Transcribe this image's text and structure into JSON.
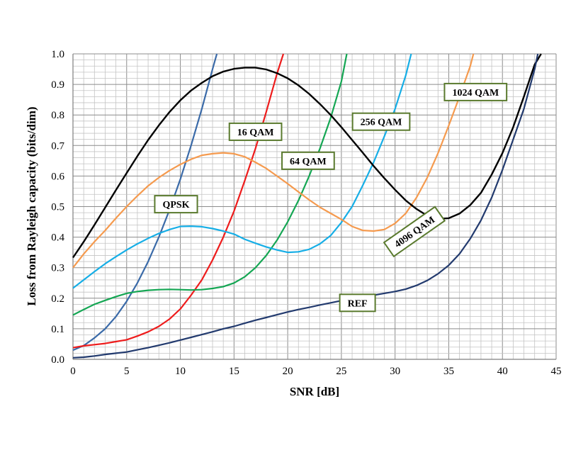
{
  "chart_data": {
    "type": "line",
    "xlabel": "SNR [dB]",
    "ylabel": "Loss from Rayleigh capacity (bits/dim)",
    "xlim": [
      0,
      45
    ],
    "ylim": [
      0,
      1.0
    ],
    "x_ticks": [
      "0",
      "5",
      "10",
      "15",
      "20",
      "25",
      "30",
      "35",
      "40",
      "45"
    ],
    "y_ticks": [
      "0.0",
      "0.1",
      "0.2",
      "0.3",
      "0.4",
      "0.5",
      "0.6",
      "0.7",
      "0.8",
      "0.9",
      "1.0"
    ],
    "grid": true,
    "series": [
      {
        "name": "QPSK",
        "color": "#3a6aa8",
        "x": [
          0,
          1,
          2,
          3,
          4,
          5,
          6,
          7,
          8,
          9,
          10,
          11,
          12,
          13,
          13.4
        ],
        "y": [
          0.03,
          0.045,
          0.07,
          0.1,
          0.14,
          0.19,
          0.25,
          0.32,
          0.4,
          0.49,
          0.59,
          0.7,
          0.82,
          0.95,
          1.0
        ]
      },
      {
        "name": "16 QAM",
        "color": "#ee1c1c",
        "x": [
          0,
          1,
          2,
          3,
          4,
          5,
          6,
          7,
          8,
          9,
          10,
          11,
          12,
          13,
          14,
          15,
          16,
          17,
          18,
          19,
          19.6
        ],
        "y": [
          0.038,
          0.044,
          0.048,
          0.052,
          0.058,
          0.064,
          0.076,
          0.09,
          0.108,
          0.132,
          0.165,
          0.21,
          0.26,
          0.325,
          0.4,
          0.485,
          0.585,
          0.69,
          0.81,
          0.935,
          1.0
        ]
      },
      {
        "name": "64 QAM",
        "color": "#14a653",
        "x": [
          0,
          1,
          2,
          3,
          4,
          5,
          6,
          7,
          8,
          9,
          10,
          11,
          12,
          13,
          14,
          15,
          16,
          17,
          18,
          19,
          20,
          21,
          22,
          23,
          24,
          25,
          25.5
        ],
        "y": [
          0.145,
          0.163,
          0.18,
          0.193,
          0.205,
          0.216,
          0.222,
          0.226,
          0.228,
          0.229,
          0.228,
          0.227,
          0.228,
          0.232,
          0.238,
          0.25,
          0.27,
          0.3,
          0.34,
          0.39,
          0.45,
          0.52,
          0.6,
          0.69,
          0.79,
          0.91,
          1.0
        ]
      },
      {
        "name": "256 QAM",
        "color": "#16aee6",
        "x": [
          0,
          1,
          2,
          3,
          4,
          5,
          6,
          7,
          8,
          9,
          10,
          11,
          12,
          13,
          14,
          15,
          16,
          17,
          18,
          19,
          20,
          21,
          22,
          23,
          24,
          25,
          26,
          27,
          28,
          29,
          30,
          31,
          31.5
        ],
        "y": [
          0.233,
          0.26,
          0.287,
          0.313,
          0.336,
          0.358,
          0.378,
          0.396,
          0.412,
          0.425,
          0.435,
          0.436,
          0.434,
          0.428,
          0.42,
          0.41,
          0.393,
          0.38,
          0.368,
          0.358,
          0.35,
          0.352,
          0.36,
          0.378,
          0.405,
          0.448,
          0.5,
          0.57,
          0.645,
          0.73,
          0.82,
          0.93,
          1.0
        ]
      },
      {
        "name": "1024 QAM",
        "color": "#f59a4e",
        "x": [
          0,
          1,
          2,
          3,
          4,
          5,
          6,
          7,
          8,
          9,
          10,
          11,
          12,
          13,
          14,
          15,
          16,
          17,
          18,
          19,
          20,
          21,
          22,
          23,
          24,
          25,
          26,
          27,
          28,
          29,
          30,
          31,
          32,
          33,
          34,
          35,
          36,
          37,
          37.3
        ],
        "y": [
          0.3,
          0.345,
          0.385,
          0.422,
          0.462,
          0.5,
          0.535,
          0.568,
          0.595,
          0.618,
          0.638,
          0.655,
          0.668,
          0.673,
          0.676,
          0.673,
          0.663,
          0.645,
          0.625,
          0.6,
          0.575,
          0.548,
          0.522,
          0.498,
          0.478,
          0.458,
          0.435,
          0.422,
          0.42,
          0.425,
          0.445,
          0.478,
          0.53,
          0.595,
          0.675,
          0.765,
          0.86,
          0.96,
          1.0
        ]
      },
      {
        "name": "4096 QAM",
        "color": "#000000",
        "x": [
          0,
          1,
          2,
          3,
          4,
          5,
          6,
          7,
          8,
          9,
          10,
          11,
          12,
          13,
          14,
          15,
          16,
          17,
          18,
          19,
          20,
          21,
          22,
          23,
          24,
          25,
          26,
          27,
          28,
          29,
          30,
          31,
          32,
          33,
          34,
          35,
          36,
          37,
          38,
          39,
          40,
          41,
          42,
          43,
          43.6
        ],
        "y": [
          0.333,
          0.385,
          0.44,
          0.497,
          0.554,
          0.61,
          0.665,
          0.718,
          0.766,
          0.81,
          0.848,
          0.88,
          0.905,
          0.927,
          0.942,
          0.951,
          0.955,
          0.955,
          0.949,
          0.937,
          0.92,
          0.897,
          0.869,
          0.836,
          0.8,
          0.76,
          0.718,
          0.676,
          0.633,
          0.593,
          0.555,
          0.52,
          0.492,
          0.47,
          0.46,
          0.462,
          0.477,
          0.505,
          0.545,
          0.605,
          0.675,
          0.76,
          0.86,
          0.965,
          1.0
        ]
      },
      {
        "name": "REF",
        "color": "#223a6e",
        "x": [
          0,
          1,
          2,
          3,
          4,
          5,
          6,
          7,
          8,
          9,
          10,
          11,
          12,
          13,
          14,
          15,
          16,
          17,
          18,
          19,
          20,
          21,
          22,
          23,
          24,
          25,
          26,
          27,
          28,
          29,
          30,
          31,
          32,
          33,
          34,
          35,
          36,
          37,
          38,
          39,
          40,
          41,
          42,
          43,
          43.3
        ],
        "y": [
          0.005,
          0.007,
          0.011,
          0.016,
          0.02,
          0.024,
          0.031,
          0.038,
          0.046,
          0.054,
          0.063,
          0.072,
          0.081,
          0.09,
          0.1,
          0.108,
          0.118,
          0.128,
          0.137,
          0.146,
          0.155,
          0.163,
          0.17,
          0.178,
          0.185,
          0.192,
          0.198,
          0.204,
          0.21,
          0.216,
          0.222,
          0.23,
          0.242,
          0.258,
          0.28,
          0.308,
          0.345,
          0.395,
          0.455,
          0.53,
          0.62,
          0.72,
          0.82,
          0.95,
          1.0
        ]
      }
    ],
    "annotations": [
      {
        "text": "QPSK",
        "x": 9.6,
        "y": 0.508,
        "rotate": 0
      },
      {
        "text": "16 QAM",
        "x": 17.0,
        "y": 0.745,
        "rotate": 0
      },
      {
        "text": "64 QAM",
        "x": 21.9,
        "y": 0.65,
        "rotate": 0
      },
      {
        "text": "256 QAM",
        "x": 28.7,
        "y": 0.778,
        "rotate": 0
      },
      {
        "text": "1024 QAM",
        "x": 37.5,
        "y": 0.875,
        "rotate": 0
      },
      {
        "text": "4096 QAM",
        "x": 31.8,
        "y": 0.418,
        "rotate": -35
      },
      {
        "text": "REF",
        "x": 26.5,
        "y": 0.185,
        "rotate": 0
      }
    ]
  }
}
